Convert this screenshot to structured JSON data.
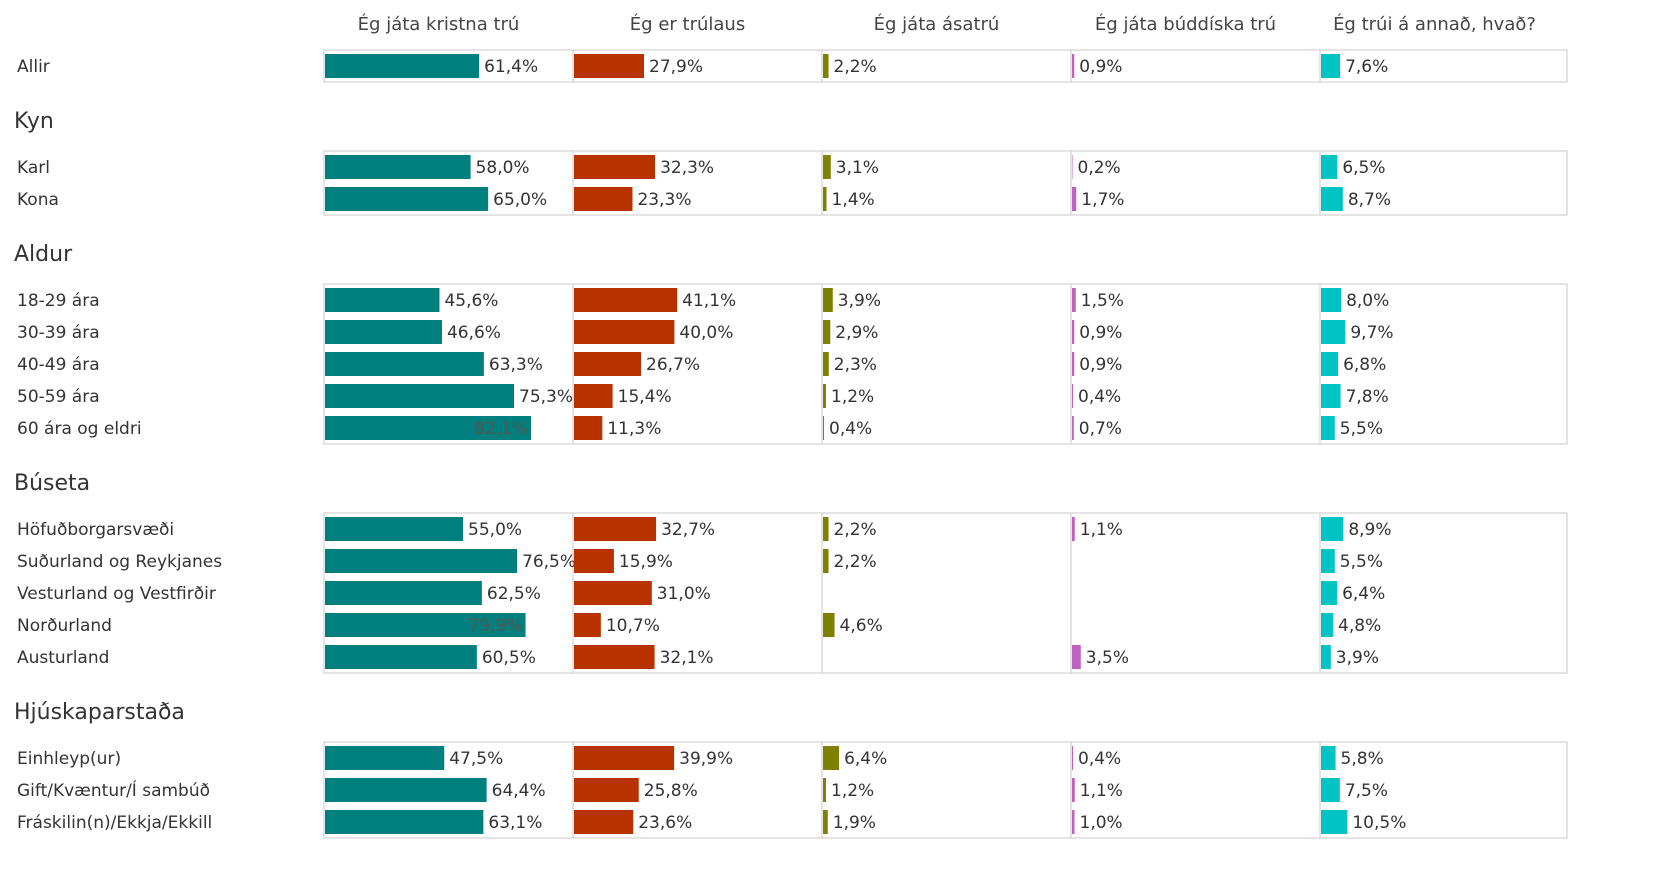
{
  "chart_data": {
    "type": "bar",
    "xlim": [
      0,
      100
    ],
    "series": [
      {
        "name": "Ég játa kristna trú",
        "color": "#007f7f"
      },
      {
        "name": "Ég er trúlaus",
        "color": "#b83200"
      },
      {
        "name": "Ég játa ásatrú",
        "color": "#7f7f00"
      },
      {
        "name": "Ég játa búddíska trú",
        "color": "#c060c0"
      },
      {
        "name": "Ég trúi á annað, hvað?",
        "color": "#00c4c4"
      }
    ],
    "sections": [
      {
        "categories": [
          "Allir"
        ],
        "values": [
          [
            61.4,
            27.9,
            2.2,
            0.9,
            7.6
          ]
        ],
        "value_labels": [
          [
            "61,4%",
            "27,9%",
            "2,2%",
            "0,9%",
            "7,6%"
          ]
        ]
      },
      {
        "title": "Kyn",
        "categories": [
          "Karl",
          "Kona"
        ],
        "values": [
          [
            58.0,
            32.3,
            3.1,
            0.2,
            6.5
          ],
          [
            65.0,
            23.3,
            1.4,
            1.7,
            8.7
          ]
        ],
        "value_labels": [
          [
            "58,0%",
            "32,3%",
            "3,1%",
            "0,2%",
            "6,5%"
          ],
          [
            "65,0%",
            "23,3%",
            "1,4%",
            "1,7%",
            "8,7%"
          ]
        ]
      },
      {
        "title": "Aldur",
        "categories": [
          "18-29 ára",
          "30-39 ára",
          "40-49 ára",
          "50-59 ára",
          "60 ára og eldri"
        ],
        "values": [
          [
            45.6,
            41.1,
            3.9,
            1.5,
            8.0
          ],
          [
            46.6,
            40.0,
            2.9,
            0.9,
            9.7
          ],
          [
            63.3,
            26.7,
            2.3,
            0.9,
            6.8
          ],
          [
            75.3,
            15.4,
            1.2,
            0.4,
            7.8
          ],
          [
            82.1,
            11.3,
            0.4,
            0.7,
            5.5
          ]
        ],
        "value_labels": [
          [
            "45,6%",
            "41,1%",
            "3,9%",
            "1,5%",
            "8,0%"
          ],
          [
            "46,6%",
            "40,0%",
            "2,9%",
            "0,9%",
            "9,7%"
          ],
          [
            "63,3%",
            "26,7%",
            "2,3%",
            "0,9%",
            "6,8%"
          ],
          [
            "75,3%",
            "15,4%",
            "1,2%",
            "0,4%",
            "7,8%"
          ],
          [
            "82,1%",
            "11,3%",
            "0,4%",
            "0,7%",
            "5,5%"
          ]
        ]
      },
      {
        "title": "Búseta",
        "categories": [
          "Höfuðborgarsvæði",
          "Suðurland og Reykjanes",
          "Vesturland og Vestfirðir",
          "Norðurland",
          "Austurland"
        ],
        "values": [
          [
            55.0,
            32.7,
            2.2,
            1.1,
            8.9
          ],
          [
            76.5,
            15.9,
            2.2,
            null,
            5.5
          ],
          [
            62.5,
            31.0,
            null,
            null,
            6.4
          ],
          [
            79.9,
            10.7,
            4.6,
            null,
            4.8
          ],
          [
            60.5,
            32.1,
            null,
            3.5,
            3.9
          ]
        ],
        "value_labels": [
          [
            "55,0%",
            "32,7%",
            "2,2%",
            "1,1%",
            "8,9%"
          ],
          [
            "76,5%",
            "15,9%",
            "2,2%",
            null,
            "5,5%"
          ],
          [
            "62,5%",
            "31,0%",
            null,
            null,
            "6,4%"
          ],
          [
            "79,9%",
            "10,7%",
            "4,6%",
            null,
            "4,8%"
          ],
          [
            "60,5%",
            "32,1%",
            null,
            "3,5%",
            "3,9%"
          ]
        ]
      },
      {
        "title": "Hjúskaparstaða",
        "categories": [
          "Einhleyp(ur)",
          "Gift/Kvæntur/Í sambúð",
          "Fráskilin(n)/Ekkja/Ekkill"
        ],
        "values": [
          [
            47.5,
            39.9,
            6.4,
            0.4,
            5.8
          ],
          [
            64.4,
            25.8,
            1.2,
            1.1,
            7.5
          ],
          [
            63.1,
            23.6,
            1.9,
            1.0,
            10.5
          ]
        ],
        "value_labels": [
          [
            "47,5%",
            "39,9%",
            "6,4%",
            "0,4%",
            "5,8%"
          ],
          [
            "64,4%",
            "25,8%",
            "1,2%",
            "1,1%",
            "7,5%"
          ],
          [
            "63,1%",
            "23,6%",
            "1,9%",
            "1,0%",
            "10,5%"
          ]
        ]
      }
    ]
  }
}
